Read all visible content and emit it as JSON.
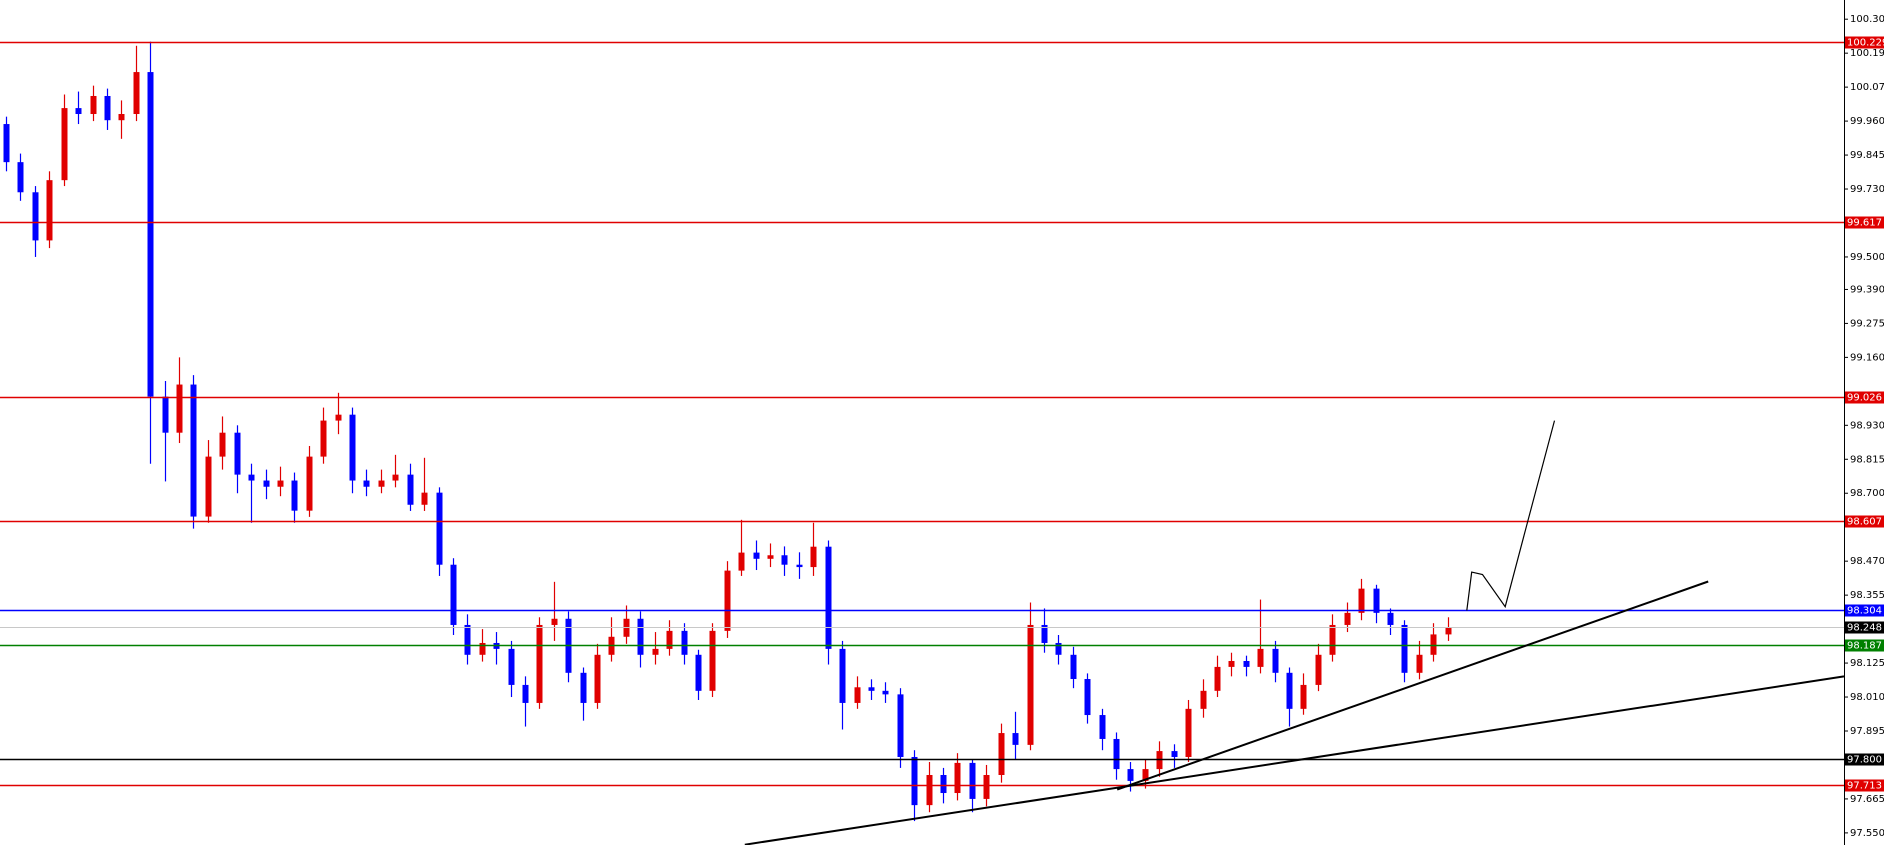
{
  "chart_data": {
    "type": "candlestick",
    "up_color": "#e00000",
    "down_color": "#0000ff",
    "xlim": [
      -0.42,
      127.5
    ],
    "ylim": [
      97.509,
      100.37
    ],
    "open": [
      99.95,
      99.821,
      99.719,
      99.556,
      99.76,
      100.004,
      99.984,
      100.045,
      99.963,
      99.984,
      100.126,
      99.027,
      98.905,
      99.068,
      98.621,
      98.824,
      98.905,
      98.763,
      98.743,
      98.722,
      98.743,
      98.641,
      98.824,
      98.946,
      98.966,
      98.743,
      98.722,
      98.743,
      98.763,
      98.661,
      98.702,
      98.458,
      98.254,
      98.153,
      98.193,
      98.173,
      98.051,
      97.99,
      98.254,
      98.275,
      98.092,
      97.99,
      98.153,
      98.214,
      98.275,
      98.153,
      98.173,
      98.234,
      98.153,
      98.031,
      98.234,
      98.438,
      98.499,
      98.478,
      98.49,
      98.458,
      98.45,
      98.519,
      98.173,
      97.99,
      98.043,
      98.031,
      98.019,
      97.807,
      97.644,
      97.746,
      97.685,
      97.787,
      97.665,
      97.746,
      97.888,
      97.848,
      98.254,
      98.193,
      98.153,
      98.071,
      97.949,
      97.868,
      97.766,
      97.726,
      97.766,
      97.827,
      97.807,
      97.97,
      98.031,
      98.112,
      98.132,
      98.112,
      98.173,
      98.092,
      97.97,
      98.051,
      98.153,
      98.254,
      98.295,
      98.377,
      98.295,
      98.254,
      98.092,
      98.153,
      98.222
    ],
    "high": [
      99.975,
      99.85,
      99.74,
      99.79,
      100.05,
      100.06,
      100.08,
      100.07,
      100.03,
      100.215,
      100.229,
      99.08,
      99.16,
      99.1,
      98.88,
      98.96,
      98.93,
      98.8,
      98.78,
      98.79,
      98.77,
      98.86,
      98.99,
      99.04,
      98.99,
      98.78,
      98.78,
      98.83,
      98.8,
      98.82,
      98.72,
      98.48,
      98.29,
      98.24,
      98.23,
      98.2,
      98.08,
      98.28,
      98.4,
      98.3,
      98.11,
      98.19,
      98.28,
      98.32,
      98.3,
      98.23,
      98.27,
      98.26,
      98.17,
      98.26,
      98.47,
      98.61,
      98.54,
      98.53,
      98.52,
      98.5,
      98.6,
      98.54,
      98.2,
      98.08,
      98.07,
      98.06,
      98.04,
      97.83,
      97.79,
      97.77,
      97.82,
      97.8,
      97.78,
      97.92,
      97.96,
      98.33,
      98.31,
      98.22,
      98.18,
      98.09,
      97.97,
      97.89,
      97.79,
      97.8,
      97.86,
      97.85,
      98.0,
      98.07,
      98.15,
      98.16,
      98.15,
      98.34,
      98.2,
      98.11,
      98.09,
      98.19,
      98.29,
      98.33,
      98.41,
      98.39,
      98.31,
      98.27,
      98.2,
      98.26,
      98.28
    ],
    "low": [
      99.79,
      99.69,
      99.5,
      99.53,
      99.74,
      99.95,
      99.96,
      99.93,
      99.9,
      99.96,
      98.8,
      98.74,
      98.87,
      98.58,
      98.6,
      98.78,
      98.7,
      98.6,
      98.68,
      98.69,
      98.6,
      98.62,
      98.8,
      98.9,
      98.7,
      98.69,
      98.7,
      98.72,
      98.64,
      98.64,
      98.42,
      98.22,
      98.12,
      98.13,
      98.12,
      98.01,
      97.91,
      97.97,
      98.2,
      98.06,
      97.93,
      97.97,
      98.13,
      98.19,
      98.11,
      98.12,
      98.15,
      98.12,
      98.0,
      98.01,
      98.21,
      98.42,
      98.44,
      98.45,
      98.42,
      98.41,
      98.42,
      98.12,
      97.9,
      97.97,
      98.0,
      97.99,
      97.77,
      97.59,
      97.62,
      97.65,
      97.66,
      97.62,
      97.64,
      97.72,
      97.8,
      97.83,
      98.16,
      98.12,
      98.04,
      97.92,
      97.83,
      97.73,
      97.69,
      97.7,
      97.74,
      97.77,
      97.79,
      97.94,
      98.01,
      98.08,
      98.08,
      98.09,
      98.06,
      97.91,
      97.95,
      98.03,
      98.13,
      98.23,
      98.27,
      98.26,
      98.22,
      98.06,
      98.07,
      98.13,
      98.2
    ],
    "close": [
      99.821,
      99.719,
      99.556,
      99.76,
      100.004,
      99.984,
      100.045,
      99.963,
      99.984,
      100.126,
      99.027,
      98.905,
      99.068,
      98.621,
      98.824,
      98.905,
      98.763,
      98.743,
      98.722,
      98.743,
      98.641,
      98.824,
      98.946,
      98.966,
      98.743,
      98.722,
      98.743,
      98.763,
      98.661,
      98.702,
      98.458,
      98.254,
      98.153,
      98.193,
      98.173,
      98.051,
      97.99,
      98.254,
      98.275,
      98.092,
      97.99,
      98.153,
      98.214,
      98.275,
      98.153,
      98.173,
      98.234,
      98.153,
      98.031,
      98.234,
      98.438,
      98.499,
      98.478,
      98.49,
      98.458,
      98.45,
      98.519,
      98.173,
      97.99,
      98.043,
      98.031,
      98.019,
      97.807,
      97.644,
      97.746,
      97.685,
      97.787,
      97.665,
      97.746,
      97.888,
      97.848,
      98.254,
      98.193,
      98.153,
      98.071,
      97.949,
      97.868,
      97.766,
      97.726,
      97.766,
      97.827,
      97.807,
      97.97,
      98.031,
      98.112,
      98.132,
      98.112,
      98.173,
      98.092,
      97.97,
      98.051,
      98.153,
      98.254,
      98.295,
      98.377,
      98.295,
      98.254,
      98.092,
      98.153,
      98.222,
      98.246
    ],
    "yticks": [
      100.305,
      {
        "value": 100.19,
        "label": "100.190"
      },
      100.075,
      {
        "value": 99.96,
        "label": "99.960"
      },
      99.845,
      {
        "value": 99.73,
        "label": "99.730"
      },
      {
        "value": 99.5,
        "label": "99.500"
      },
      {
        "value": 99.39,
        "label": "99.390"
      },
      99.275,
      {
        "value": 99.16,
        "label": "99.160"
      },
      {
        "value": 98.93,
        "label": "98.930"
      },
      98.815,
      {
        "value": 98.7,
        "label": "98.700"
      },
      {
        "value": 98.47,
        "label": "98.470"
      },
      98.355,
      98.125,
      {
        "value": 98.01,
        "label": "98.010"
      },
      97.895,
      97.665,
      {
        "value": 97.55,
        "label": "97.550"
      }
    ],
    "levels": [
      {
        "value": 100.229,
        "color": "#e00000"
      },
      {
        "value": 99.617,
        "color": "#e00000"
      },
      {
        "value": 99.026,
        "color": "#e00000"
      },
      {
        "value": 98.607,
        "color": "#e00000"
      },
      {
        "value": 98.304,
        "color": "#0000ff"
      },
      {
        "value": 98.248,
        "color": "#c8c8c8",
        "label_bg": "#000000"
      },
      {
        "value": 98.187,
        "color": "#008000"
      },
      {
        "value": 97.8,
        "label": "97.800",
        "color": "#000000"
      },
      {
        "value": 97.713,
        "color": "#e00000"
      }
    ],
    "trendlines": [
      {
        "color": "#000000",
        "x": [
          51.25,
          127.5
        ],
        "y": [
          97.51,
          98.08
        ]
      },
      {
        "color": "#000000",
        "x": [
          77.08,
          118.08
        ],
        "y": [
          97.697,
          98.401
        ]
      },
      {
        "color": "#000000",
        "x": [
          101.33,
          101.67,
          102.42,
          104.0,
          105.58,
          107.42
        ],
        "y": [
          98.303,
          98.433,
          98.425,
          98.316,
          98.608,
          98.946
        ]
      }
    ]
  }
}
